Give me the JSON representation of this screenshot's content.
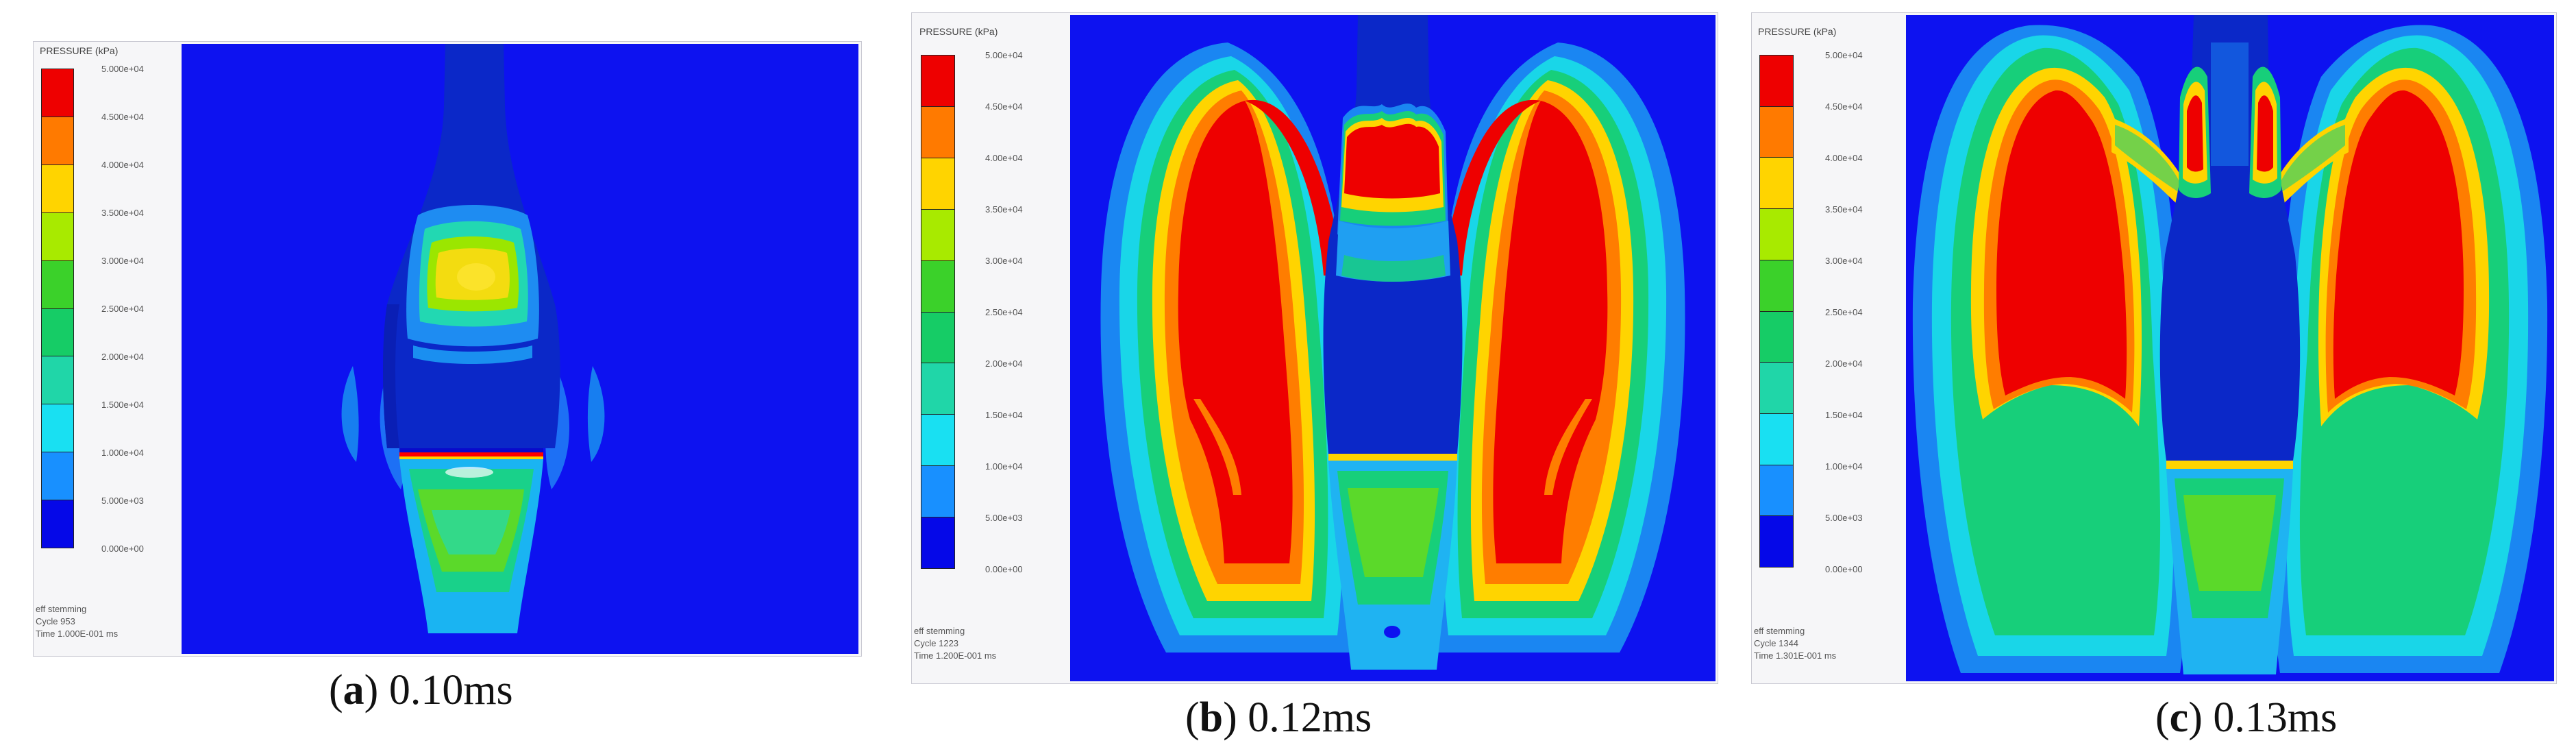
{
  "legend": {
    "title": "PRESSURE (kPa)",
    "colors": [
      "#ee0000",
      "#ff7a00",
      "#ffd400",
      "#a8ea00",
      "#3bd12a",
      "#16cc66",
      "#20d6a8",
      "#19e0f2",
      "#1890ff",
      "#0508e8"
    ]
  },
  "panels": [
    {
      "id": "a",
      "caption_letter": "a",
      "caption_time": "0.10ms",
      "ticks": [
        "5.000e+04",
        "4.500e+04",
        "4.000e+04",
        "3.500e+04",
        "3.000e+04",
        "2.500e+04",
        "2.000e+04",
        "1.500e+04",
        "1.000e+04",
        "5.000e+03",
        "0.000e+00"
      ],
      "info": [
        "eff stemming",
        "Cycle 953",
        "Time 1.000E-001 ms"
      ]
    },
    {
      "id": "b",
      "caption_letter": "b",
      "caption_time": "0.12ms",
      "ticks": [
        "5.00e+04",
        "4.50e+04",
        "4.00e+04",
        "3.50e+04",
        "3.00e+04",
        "2.50e+04",
        "2.00e+04",
        "1.50e+04",
        "1.00e+04",
        "5.00e+03",
        "0.00e+00"
      ],
      "info": [
        "eff stemming",
        "Cycle 1223",
        "Time 1.200E-001 ms"
      ]
    },
    {
      "id": "c",
      "caption_letter": "c",
      "caption_time": "0.13ms",
      "ticks": [
        "5.00e+04",
        "4.50e+04",
        "4.00e+04",
        "3.50e+04",
        "3.00e+04",
        "2.50e+04",
        "2.00e+04",
        "1.50e+04",
        "1.00e+04",
        "5.00e+03",
        "0.00e+00"
      ],
      "info": [
        "eff stemming",
        "Cycle 1344",
        "Time 1.301E-001 ms"
      ]
    }
  ]
}
